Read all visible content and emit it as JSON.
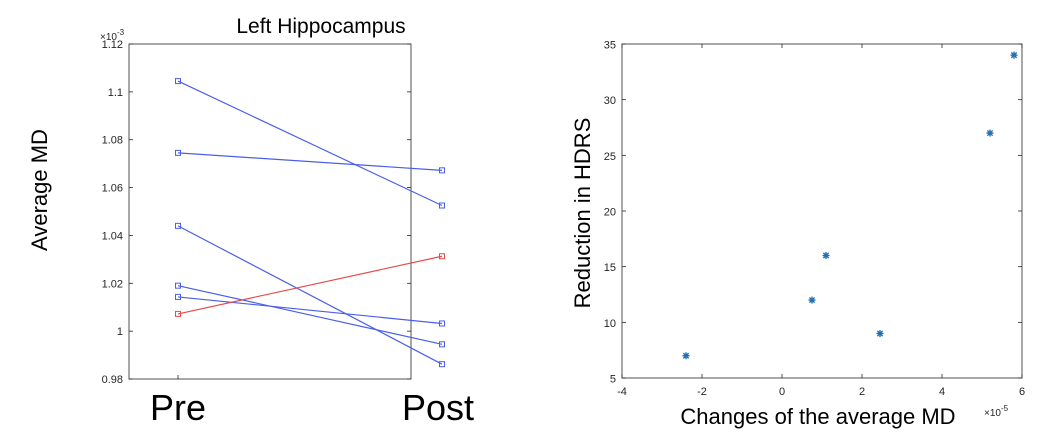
{
  "chart_data": [
    {
      "type": "line",
      "title": "Left Hippocampus",
      "ylabel": "Average MD",
      "xlabel": "",
      "categories": [
        "Pre",
        "Post"
      ],
      "y_exponent_label": "×10",
      "y_exponent_power": "-3",
      "ylim": [
        0.98,
        1.12
      ],
      "yticks": [
        0.98,
        1,
        1.02,
        1.04,
        1.06,
        1.08,
        1.1,
        1.12
      ],
      "ytick_labels": [
        "0.98",
        "1",
        "1.02",
        "1.04",
        "1.06",
        "1.08",
        "1.1",
        "1.12"
      ],
      "grid": false,
      "series": [
        {
          "values": [
            1.1045,
            1.0525
          ],
          "color": "#4a5ee8"
        },
        {
          "values": [
            1.0745,
            1.0672
          ],
          "color": "#4a5ee8"
        },
        {
          "values": [
            1.044,
            0.9862
          ],
          "color": "#4a5ee8"
        },
        {
          "values": [
            1.019,
            0.9945
          ],
          "color": "#4a5ee8"
        },
        {
          "values": [
            1.0143,
            1.0032
          ],
          "color": "#4a5ee8"
        },
        {
          "values": [
            1.0072,
            1.0313
          ],
          "color": "#e84a4a"
        }
      ]
    },
    {
      "type": "scatter",
      "title": "",
      "xlabel": "Changes of the average MD",
      "ylabel": "Reduction in HDRS",
      "x_exponent_label": "×10",
      "x_exponent_power": "-5",
      "xlim": [
        -4,
        6
      ],
      "ylim": [
        5,
        35
      ],
      "xticks": [
        -4,
        -2,
        0,
        2,
        4,
        6
      ],
      "yticks": [
        5,
        10,
        15,
        20,
        25,
        30,
        35
      ],
      "grid": false,
      "marker_color": "#1f6fb4",
      "points": [
        {
          "x": -2.4,
          "y": 7
        },
        {
          "x": 0.75,
          "y": 12
        },
        {
          "x": 1.1,
          "y": 16
        },
        {
          "x": 2.45,
          "y": 9
        },
        {
          "x": 5.2,
          "y": 27
        },
        {
          "x": 5.8,
          "y": 34
        }
      ]
    }
  ]
}
